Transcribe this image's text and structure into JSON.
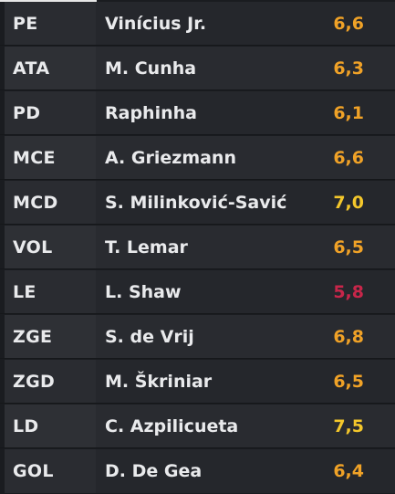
{
  "colors": {
    "rating_orange": "#f0a227",
    "rating_yellow": "#f4c72b",
    "rating_red": "#c8264a"
  },
  "players": [
    {
      "position": "PE",
      "name": "Vinícius Jr.",
      "rating": "6,6",
      "color": "#f0a227"
    },
    {
      "position": "ATA",
      "name": "M. Cunha",
      "rating": "6,3",
      "color": "#f0a227"
    },
    {
      "position": "PD",
      "name": "Raphinha",
      "rating": "6,1",
      "color": "#f0a227"
    },
    {
      "position": "MCE",
      "name": "A. Griezmann",
      "rating": "6,6",
      "color": "#f0a227"
    },
    {
      "position": "MCD",
      "name": "S. Milinković-Savić",
      "rating": "7,0",
      "color": "#f4c72b"
    },
    {
      "position": "VOL",
      "name": "T. Lemar",
      "rating": "6,5",
      "color": "#f0a227"
    },
    {
      "position": "LE",
      "name": "L. Shaw",
      "rating": "5,8",
      "color": "#c8264a"
    },
    {
      "position": "ZGE",
      "name": "S. de Vrij",
      "rating": "6,8",
      "color": "#f0a227"
    },
    {
      "position": "ZGD",
      "name": "M. Škriniar",
      "rating": "6,5",
      "color": "#f0a227"
    },
    {
      "position": "LD",
      "name": "C. Azpilicueta",
      "rating": "7,5",
      "color": "#f4c72b"
    },
    {
      "position": "GOL",
      "name": "D. De Gea",
      "rating": "6,4",
      "color": "#f0a227"
    }
  ]
}
